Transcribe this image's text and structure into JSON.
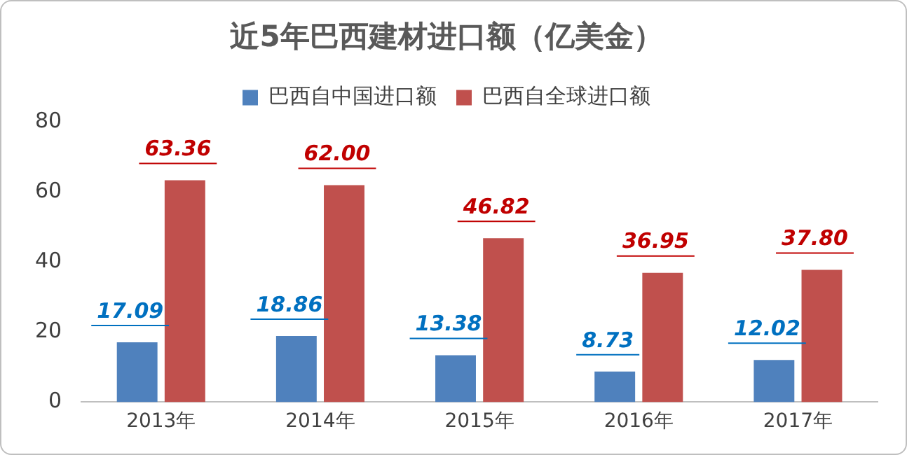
{
  "chart_data": {
    "type": "bar",
    "title": "近5年巴西建材进口额（亿美金）",
    "categories": [
      "2013年",
      "2014年",
      "2015年",
      "2016年",
      "2017年"
    ],
    "series": [
      {
        "name": "巴西自中国进口额",
        "color": "#4f81bd",
        "values": [
          17.09,
          18.86,
          13.38,
          8.73,
          12.02
        ],
        "value_labels": [
          "17.09",
          "18.86",
          "13.38",
          "8.73",
          "12.02"
        ]
      },
      {
        "name": "巴西自全球进口额",
        "color": "#c0504d",
        "values": [
          63.36,
          62.0,
          46.82,
          36.95,
          37.8
        ],
        "value_labels": [
          "63.36",
          "62.00",
          "46.82",
          "36.95",
          "37.80"
        ]
      }
    ],
    "ylim": [
      0,
      80
    ],
    "yticks": [
      0,
      20,
      40,
      60,
      80
    ],
    "grid": false,
    "legend": "top"
  }
}
